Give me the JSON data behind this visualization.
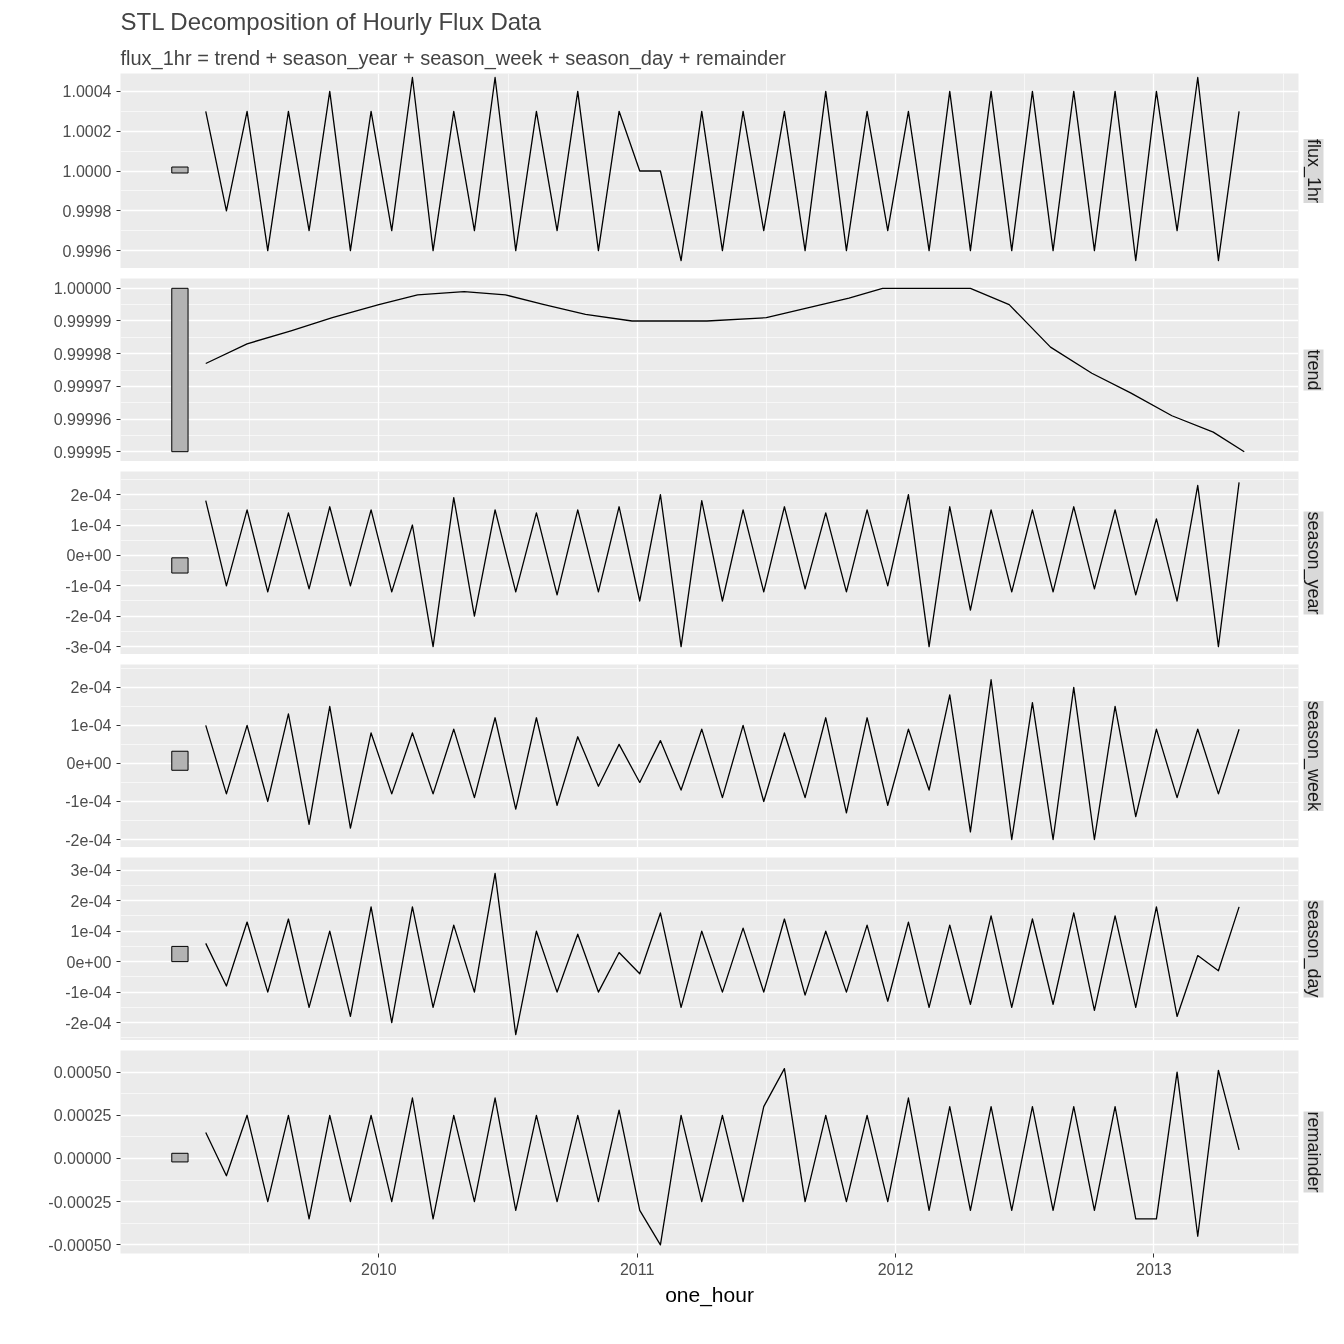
{
  "chart_data": [
    {
      "type": "line",
      "title": "STL Decomposition of Hourly Flux Data",
      "subtitle": "flux_1hr = trend + season_year + season_week + season_day + remainder",
      "ylabel": "flux_1hr",
      "xlim": [
        2009.0,
        2013.56
      ],
      "xticks": [
        2010,
        2011,
        2012,
        2013
      ],
      "ylim": [
        0.99951,
        1.00049
      ],
      "yticks": [
        {
          "value": 0.9996,
          "label": "0.9996"
        },
        {
          "value": 0.9998,
          "label": "0.9998"
        },
        {
          "value": 1.0,
          "label": "1.0000"
        },
        {
          "value": 1.0002,
          "label": "1.0002"
        },
        {
          "value": 1.0004,
          "label": "1.0004"
        }
      ],
      "grid": true,
      "tick_labels": "y",
      "series": [
        {
          "type": "bar",
          "color": "#b3b3b3",
          "x": [
            2009.23
          ],
          "base": [
            0.99999
          ],
          "values": [
            3e-05
          ]
        },
        {
          "color": "#000000",
          "x": [
            2009.33,
            2009.41,
            2009.49,
            2009.57,
            2009.65,
            2009.73,
            2009.81,
            2009.89,
            2009.97,
            2010.05,
            2010.13,
            2010.21,
            2010.29,
            2010.37,
            2010.45,
            2010.53,
            2010.61,
            2010.69,
            2010.77,
            2010.85,
            2010.93,
            2011.01,
            2011.09,
            2011.17,
            2011.25,
            2011.33,
            2011.41,
            2011.49,
            2011.57,
            2011.65,
            2011.73,
            2011.81,
            2011.89,
            2011.97,
            2012.05,
            2012.13,
            2012.21,
            2012.29,
            2012.37,
            2012.45,
            2012.53,
            2012.61,
            2012.69,
            2012.77,
            2012.85,
            2012.93,
            2013.01,
            2013.09,
            2013.17,
            2013.25,
            2013.33
          ],
          "values": [
            1.0003,
            0.9998,
            1.0003,
            0.9996,
            1.0003,
            0.9997,
            1.0004,
            0.9996,
            1.0003,
            0.9997,
            1.00047,
            0.9996,
            1.0003,
            0.9997,
            1.00047,
            0.9996,
            1.0003,
            0.9997,
            1.0004,
            0.9996,
            1.0003,
            1.0,
            1.0,
            0.99955,
            1.0003,
            0.9996,
            1.0003,
            0.9997,
            1.0003,
            0.9996,
            1.0004,
            0.9996,
            1.0003,
            0.9997,
            1.0003,
            0.9996,
            1.0004,
            0.9996,
            1.0004,
            0.9996,
            1.0004,
            0.9996,
            1.0004,
            0.9996,
            1.0004,
            0.99955,
            1.0004,
            0.9997,
            1.00047,
            0.99955,
            1.0003
          ]
        }
      ]
    },
    {
      "type": "line",
      "ylabel": "trend",
      "xlim": [
        2009.0,
        2013.56
      ],
      "xticks": [
        2010,
        2011,
        2012,
        2013
      ],
      "ylim": [
        0.999947,
        1.000003
      ],
      "yticks": [
        0.99995,
        0.99996,
        0.99997,
        0.99998,
        0.99999,
        {
          "value": 1.0,
          "label": "1.00000"
        }
      ],
      "grid": true,
      "tick_labels": "y",
      "series": [
        {
          "type": "bar",
          "color": "#b3b3b3",
          "x": [
            2009.23
          ],
          "base": [
            0.99995
          ],
          "values": [
            5e-05
          ]
        },
        {
          "color": "#000000",
          "x": [
            2009.33,
            2009.49,
            2009.66,
            2009.82,
            2010.0,
            2010.15,
            2010.33,
            2010.49,
            2010.64,
            2010.8,
            2010.98,
            2011.27,
            2011.5,
            2011.66,
            2011.82,
            2011.95,
            2012.13,
            2012.29,
            2012.44,
            2012.6,
            2012.76,
            2012.91,
            2013.07,
            2013.23,
            2013.35
          ],
          "values": [
            0.999977,
            0.999983,
            0.999987,
            0.999991,
            0.999995,
            0.999998,
            0.999999,
            0.999998,
            0.999995,
            0.999992,
            0.99999,
            0.99999,
            0.999991,
            0.999994,
            0.999997,
            1.0,
            1.0,
            1.0,
            0.999995,
            0.999982,
            0.999974,
            0.999968,
            0.999961,
            0.999956,
            0.99995
          ]
        }
      ]
    },
    {
      "type": "line",
      "ylabel": "season_year",
      "xlim": [
        2009.0,
        2013.56
      ],
      "xticks": [
        2010,
        2011,
        2012,
        2013
      ],
      "ylim": [
        -0.000326,
        0.000276
      ],
      "yticks": [
        {
          "value": -0.0003,
          "label": "-3e-04"
        },
        {
          "value": -0.0002,
          "label": "-2e-04"
        },
        {
          "value": -0.0001,
          "label": "-1e-04"
        },
        {
          "value": 0,
          "label": "0e+00"
        },
        {
          "value": 0.0001,
          "label": "1e-04"
        },
        {
          "value": 0.0002,
          "label": "2e-04"
        }
      ],
      "grid": true,
      "tick_labels": "y",
      "series": [
        {
          "type": "bar",
          "color": "#b3b3b3",
          "x": [
            2009.23
          ],
          "base": [
            -5.8e-05
          ],
          "values": [
            5e-05
          ]
        },
        {
          "color": "#000000",
          "x": [
            2009.33,
            2009.41,
            2009.49,
            2009.57,
            2009.65,
            2009.73,
            2009.81,
            2009.89,
            2009.97,
            2010.05,
            2010.13,
            2010.21,
            2010.29,
            2010.37,
            2010.45,
            2010.53,
            2010.61,
            2010.69,
            2010.77,
            2010.85,
            2010.93,
            2011.01,
            2011.09,
            2011.17,
            2011.25,
            2011.33,
            2011.41,
            2011.49,
            2011.57,
            2011.65,
            2011.73,
            2011.81,
            2011.89,
            2011.97,
            2012.05,
            2012.13,
            2012.21,
            2012.29,
            2012.37,
            2012.45,
            2012.53,
            2012.61,
            2012.69,
            2012.77,
            2012.85,
            2012.93,
            2013.01,
            2013.09,
            2013.17,
            2013.25,
            2013.33
          ],
          "values": [
            0.00018,
            -0.0001,
            0.00015,
            -0.00012,
            0.00014,
            -0.00011,
            0.00016,
            -0.0001,
            0.00015,
            -0.00012,
            0.0001,
            -0.0003,
            0.00019,
            -0.0002,
            0.00015,
            -0.00012,
            0.00014,
            -0.00013,
            0.00015,
            -0.00012,
            0.00016,
            -0.00015,
            0.0002,
            -0.0003,
            0.00018,
            -0.00015,
            0.00015,
            -0.00012,
            0.00016,
            -0.00011,
            0.00014,
            -0.00012,
            0.00015,
            -0.0001,
            0.0002,
            -0.0003,
            0.00016,
            -0.00018,
            0.00015,
            -0.00012,
            0.00015,
            -0.00012,
            0.00016,
            -0.00011,
            0.00015,
            -0.00013,
            0.00012,
            -0.00015,
            0.00023,
            -0.0003,
            0.00024
          ]
        }
      ]
    },
    {
      "type": "line",
      "ylabel": "season_week",
      "xlim": [
        2009.0,
        2013.56
      ],
      "xticks": [
        2010,
        2011,
        2012,
        2013
      ],
      "ylim": [
        -0.000221,
        0.00026
      ],
      "yticks": [
        {
          "value": -0.0002,
          "label": "-2e-04"
        },
        {
          "value": -0.0001,
          "label": "-1e-04"
        },
        {
          "value": 0,
          "label": "0e+00"
        },
        {
          "value": 0.0001,
          "label": "1e-04"
        },
        {
          "value": 0.0002,
          "label": "2e-04"
        }
      ],
      "grid": true,
      "tick_labels": "y",
      "series": [
        {
          "type": "bar",
          "color": "#b3b3b3",
          "x": [
            2009.23
          ],
          "base": [
            -1.8e-05
          ],
          "values": [
            5e-05
          ]
        },
        {
          "color": "#000000",
          "x": [
            2009.33,
            2009.41,
            2009.49,
            2009.57,
            2009.65,
            2009.73,
            2009.81,
            2009.89,
            2009.97,
            2010.05,
            2010.13,
            2010.21,
            2010.29,
            2010.37,
            2010.45,
            2010.53,
            2010.61,
            2010.69,
            2010.77,
            2010.85,
            2010.93,
            2011.01,
            2011.09,
            2011.17,
            2011.25,
            2011.33,
            2011.41,
            2011.49,
            2011.57,
            2011.65,
            2011.73,
            2011.81,
            2011.89,
            2011.97,
            2012.05,
            2012.13,
            2012.21,
            2012.29,
            2012.37,
            2012.45,
            2012.53,
            2012.61,
            2012.69,
            2012.77,
            2012.85,
            2012.93,
            2013.01,
            2013.09,
            2013.17,
            2013.25,
            2013.33
          ],
          "values": [
            0.0001,
            -8e-05,
            0.0001,
            -0.0001,
            0.00013,
            -0.00016,
            0.00015,
            -0.00017,
            8e-05,
            -8e-05,
            8e-05,
            -8e-05,
            9e-05,
            -9e-05,
            0.00012,
            -0.00012,
            0.00012,
            -0.00011,
            7e-05,
            -6e-05,
            5e-05,
            -5e-05,
            6e-05,
            -7e-05,
            9e-05,
            -9e-05,
            0.0001,
            -0.0001,
            8e-05,
            -9e-05,
            0.00012,
            -0.00013,
            0.00012,
            -0.00011,
            9e-05,
            -7e-05,
            0.00018,
            -0.00018,
            0.00022,
            -0.0002,
            0.00016,
            -0.0002,
            0.0002,
            -0.0002,
            0.00015,
            -0.00014,
            9e-05,
            -9e-05,
            9e-05,
            -8e-05,
            9e-05
          ]
        }
      ]
    },
    {
      "type": "line",
      "ylabel": "season_day",
      "xlim": [
        2009.0,
        2013.56
      ],
      "xticks": [
        2010,
        2011,
        2012,
        2013
      ],
      "ylim": [
        -0.000259,
        0.000342
      ],
      "yticks": [
        {
          "value": -0.0002,
          "label": "-2e-04"
        },
        {
          "value": -0.0001,
          "label": "-1e-04"
        },
        {
          "value": 0,
          "label": "0e+00"
        },
        {
          "value": 0.0001,
          "label": "1e-04"
        },
        {
          "value": 0.0002,
          "label": "2e-04"
        },
        {
          "value": 0.0003,
          "label": "3e-04"
        }
      ],
      "grid": true,
      "tick_labels": "y",
      "series": [
        {
          "type": "bar",
          "color": "#b3b3b3",
          "x": [
            2009.23
          ],
          "base": [
            0
          ],
          "values": [
            5e-05
          ]
        },
        {
          "color": "#000000",
          "x": [
            2009.33,
            2009.41,
            2009.49,
            2009.57,
            2009.65,
            2009.73,
            2009.81,
            2009.89,
            2009.97,
            2010.05,
            2010.13,
            2010.21,
            2010.29,
            2010.37,
            2010.45,
            2010.53,
            2010.61,
            2010.69,
            2010.77,
            2010.85,
            2010.93,
            2011.01,
            2011.09,
            2011.17,
            2011.25,
            2011.33,
            2011.41,
            2011.49,
            2011.57,
            2011.65,
            2011.73,
            2011.81,
            2011.89,
            2011.97,
            2012.05,
            2012.13,
            2012.21,
            2012.29,
            2012.37,
            2012.45,
            2012.53,
            2012.61,
            2012.69,
            2012.77,
            2012.85,
            2012.93,
            2013.01,
            2013.09,
            2013.17,
            2013.25,
            2013.33
          ],
          "values": [
            6e-05,
            -8e-05,
            0.00013,
            -0.0001,
            0.00014,
            -0.00015,
            0.0001,
            -0.00018,
            0.00018,
            -0.0002,
            0.00018,
            -0.00015,
            0.00012,
            -0.0001,
            0.00029,
            -0.00024,
            0.0001,
            -0.0001,
            9e-05,
            -0.0001,
            3e-05,
            -4e-05,
            0.00016,
            -0.00015,
            0.0001,
            -0.0001,
            0.00011,
            -0.0001,
            0.00014,
            -0.00011,
            0.0001,
            -0.0001,
            0.00012,
            -0.00013,
            0.00013,
            -0.00015,
            0.00012,
            -0.00014,
            0.00015,
            -0.00015,
            0.00014,
            -0.00014,
            0.00016,
            -0.00016,
            0.00015,
            -0.00015,
            0.00018,
            -0.00018,
            2e-05,
            -3e-05,
            0.00018
          ]
        }
      ]
    },
    {
      "type": "line",
      "ylabel": "remainder",
      "xlabel": "one_hour",
      "xlim": [
        2009.0,
        2013.56
      ],
      "xticks": [
        2010,
        2011,
        2012,
        2013
      ],
      "ylim": [
        -0.00055,
        0.000625
      ],
      "yticks": [
        {
          "value": -0.0005,
          "label": "-0.00050"
        },
        {
          "value": -0.00025,
          "label": "-0.00025"
        },
        {
          "value": 0,
          "label": "0.00000"
        },
        {
          "value": 0.00025,
          "label": "0.00025"
        },
        {
          "value": 0.0005,
          "label": "0.00050"
        }
      ],
      "grid": true,
      "series": [
        {
          "type": "bar",
          "color": "#b3b3b3",
          "x": [
            2009.23
          ],
          "base": [
            -2e-05
          ],
          "values": [
            5e-05
          ]
        },
        {
          "color": "#000000",
          "x": [
            2009.33,
            2009.41,
            2009.49,
            2009.57,
            2009.65,
            2009.73,
            2009.81,
            2009.89,
            2009.97,
            2010.05,
            2010.13,
            2010.21,
            2010.29,
            2010.37,
            2010.45,
            2010.53,
            2010.61,
            2010.69,
            2010.77,
            2010.85,
            2010.93,
            2011.01,
            2011.09,
            2011.17,
            2011.25,
            2011.33,
            2011.41,
            2011.49,
            2011.57,
            2011.65,
            2011.73,
            2011.81,
            2011.89,
            2011.97,
            2012.05,
            2012.13,
            2012.21,
            2012.29,
            2012.37,
            2012.45,
            2012.53,
            2012.61,
            2012.69,
            2012.77,
            2012.85,
            2012.93,
            2013.01,
            2013.09,
            2013.17,
            2013.25,
            2013.33
          ],
          "values": [
            0.00015,
            -0.0001,
            0.00025,
            -0.00025,
            0.00025,
            -0.00035,
            0.00025,
            -0.00025,
            0.00025,
            -0.00025,
            0.00035,
            -0.00035,
            0.00025,
            -0.00025,
            0.00035,
            -0.0003,
            0.00025,
            -0.00025,
            0.00025,
            -0.00025,
            0.00028,
            -0.0003,
            -0.0005,
            0.00025,
            -0.00025,
            0.00025,
            -0.00025,
            0.0003,
            0.00052,
            -0.00025,
            0.00025,
            -0.00025,
            0.00025,
            -0.00025,
            0.00035,
            -0.0003,
            0.0003,
            -0.0003,
            0.0003,
            -0.0003,
            0.0003,
            -0.0003,
            0.0003,
            -0.0003,
            0.0003,
            -0.00035,
            -0.00035,
            0.0005,
            -0.00045,
            0.00051,
            5e-05
          ]
        }
      ]
    }
  ]
}
